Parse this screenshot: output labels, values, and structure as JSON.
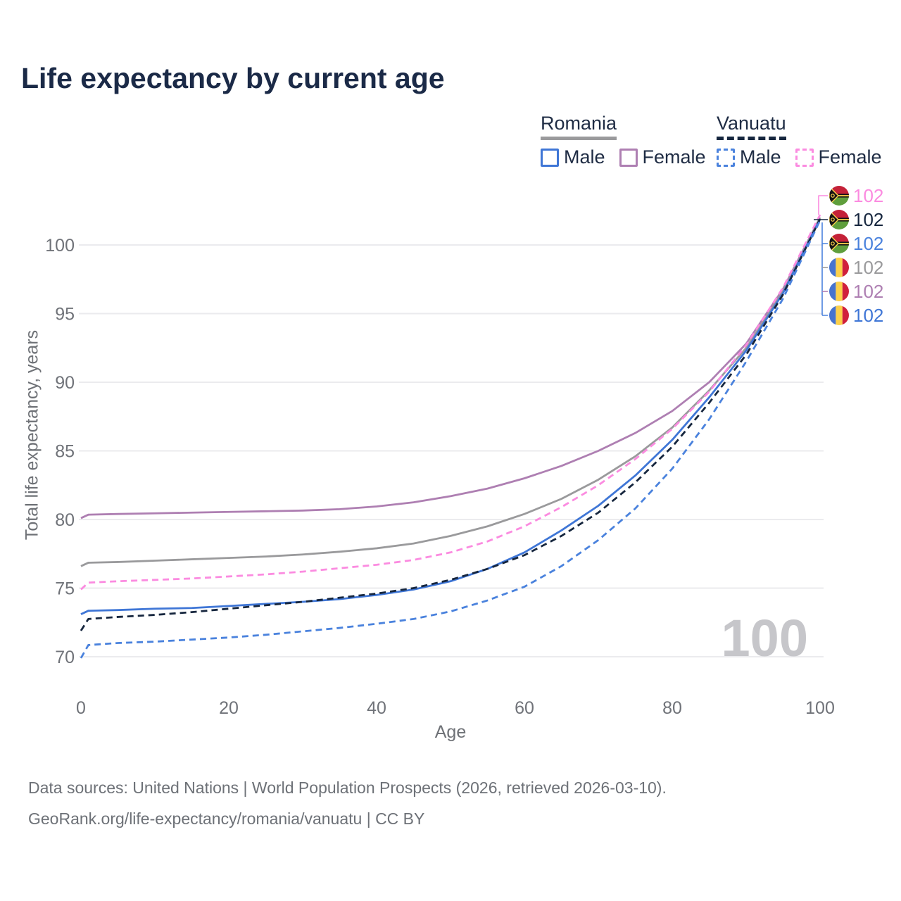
{
  "title": "Life expectancy by current age",
  "legend": {
    "groups": [
      {
        "name": "Romania",
        "line_style": "solid",
        "entries": [
          {
            "label": "Male",
            "series": "romania-male"
          },
          {
            "label": "Female",
            "series": "romania-female"
          }
        ]
      },
      {
        "name": "Vanuatu",
        "line_style": "dashed",
        "entries": [
          {
            "label": "Male",
            "series": "vanuatu-male"
          },
          {
            "label": "Female",
            "series": "vanuatu-female"
          }
        ]
      }
    ]
  },
  "footer": {
    "line1": "Data sources: United Nations | World Population Prospects (2026, retrieved 2026-03-10).",
    "line2": "GeoRank.org/life-expectancy/romania/vanuatu | CC BY"
  },
  "chart_data": {
    "type": "line",
    "title": "Life expectancy by current age",
    "xlabel": "Age",
    "ylabel": "Total life expectancy, years",
    "x_ticks": [
      0,
      20,
      40,
      60,
      80,
      100
    ],
    "y_ticks": [
      70,
      75,
      80,
      85,
      90,
      95,
      100
    ],
    "xlim": [
      0,
      100
    ],
    "ylim": [
      69.5,
      102.5
    ],
    "grid": "horizontal",
    "age_indicator_label": "100",
    "x": [
      0,
      1,
      5,
      10,
      15,
      20,
      25,
      30,
      35,
      40,
      45,
      50,
      55,
      60,
      65,
      70,
      75,
      80,
      85,
      90,
      95,
      100
    ],
    "series": [
      {
        "id": "vanuatu-female",
        "country": "Vanuatu",
        "sex": "Female",
        "flag": "vanuatu",
        "color": "#fb8be0",
        "dash": true,
        "end_label": "102",
        "values": [
          74.9,
          75.4,
          75.5,
          75.6,
          75.7,
          75.85,
          76.0,
          76.2,
          76.45,
          76.7,
          77.05,
          77.6,
          78.4,
          79.5,
          80.9,
          82.5,
          84.4,
          86.6,
          89.3,
          92.7,
          96.9,
          102.2
        ]
      },
      {
        "id": "vanuatu-both",
        "country": "Vanuatu",
        "sex": "Both sexes",
        "flag": "vanuatu",
        "color": "#16263e",
        "dash": true,
        "end_label": "102",
        "values": [
          71.9,
          72.75,
          72.9,
          73.05,
          73.25,
          73.5,
          73.75,
          74.0,
          74.3,
          74.6,
          75.0,
          75.6,
          76.4,
          77.4,
          78.8,
          80.5,
          82.7,
          85.3,
          88.5,
          92.0,
          96.4,
          101.9
        ]
      },
      {
        "id": "vanuatu-male",
        "country": "Vanuatu",
        "sex": "Male",
        "flag": "vanuatu",
        "color": "#4a82dd",
        "dash": true,
        "end_label": "102",
        "values": [
          69.9,
          70.85,
          71.0,
          71.1,
          71.25,
          71.4,
          71.6,
          71.85,
          72.1,
          72.4,
          72.75,
          73.3,
          74.1,
          75.1,
          76.6,
          78.5,
          80.8,
          83.7,
          87.3,
          91.5,
          96.1,
          101.8
        ]
      },
      {
        "id": "romania-both",
        "country": "Romania",
        "sex": "Both sexes",
        "flag": "romania",
        "color": "#9a9a9c",
        "dash": false,
        "end_label": "102",
        "values": [
          76.6,
          76.85,
          76.9,
          77.0,
          77.1,
          77.2,
          77.3,
          77.45,
          77.65,
          77.9,
          78.25,
          78.8,
          79.5,
          80.4,
          81.5,
          82.9,
          84.6,
          86.7,
          89.4,
          92.5,
          96.6,
          102.0
        ]
      },
      {
        "id": "romania-female",
        "country": "Romania",
        "sex": "Female",
        "flag": "romania",
        "color": "#ae7fb2",
        "dash": false,
        "end_label": "102",
        "values": [
          80.1,
          80.35,
          80.4,
          80.45,
          80.5,
          80.55,
          80.6,
          80.65,
          80.75,
          80.95,
          81.25,
          81.7,
          82.25,
          83.0,
          83.9,
          85.0,
          86.3,
          87.9,
          90.0,
          92.8,
          96.8,
          102.0
        ]
      },
      {
        "id": "romania-male",
        "country": "Romania",
        "sex": "Male",
        "flag": "romania",
        "color": "#3f76d6",
        "dash": false,
        "end_label": "102",
        "values": [
          73.1,
          73.35,
          73.4,
          73.5,
          73.55,
          73.7,
          73.85,
          74.0,
          74.2,
          74.5,
          74.9,
          75.5,
          76.4,
          77.6,
          79.2,
          81.0,
          83.2,
          85.8,
          88.9,
          92.3,
          96.5,
          101.9
        ]
      }
    ],
    "end_labels_order": [
      "vanuatu-female",
      "vanuatu-both",
      "vanuatu-male",
      "romania-both",
      "romania-female",
      "romania-male"
    ],
    "draw_order": [
      "romania-female",
      "romania-both",
      "vanuatu-female",
      "romania-male",
      "vanuatu-both",
      "vanuatu-male"
    ],
    "flag_colors": {
      "romania": {
        "blue": "#4673cf",
        "yellow": "#fcd04a",
        "red": "#d0203c"
      },
      "vanuatu": {
        "red": "#c42138",
        "green": "#5f9e3c",
        "black": "#141414",
        "yellow": "#fcd04a"
      }
    }
  }
}
